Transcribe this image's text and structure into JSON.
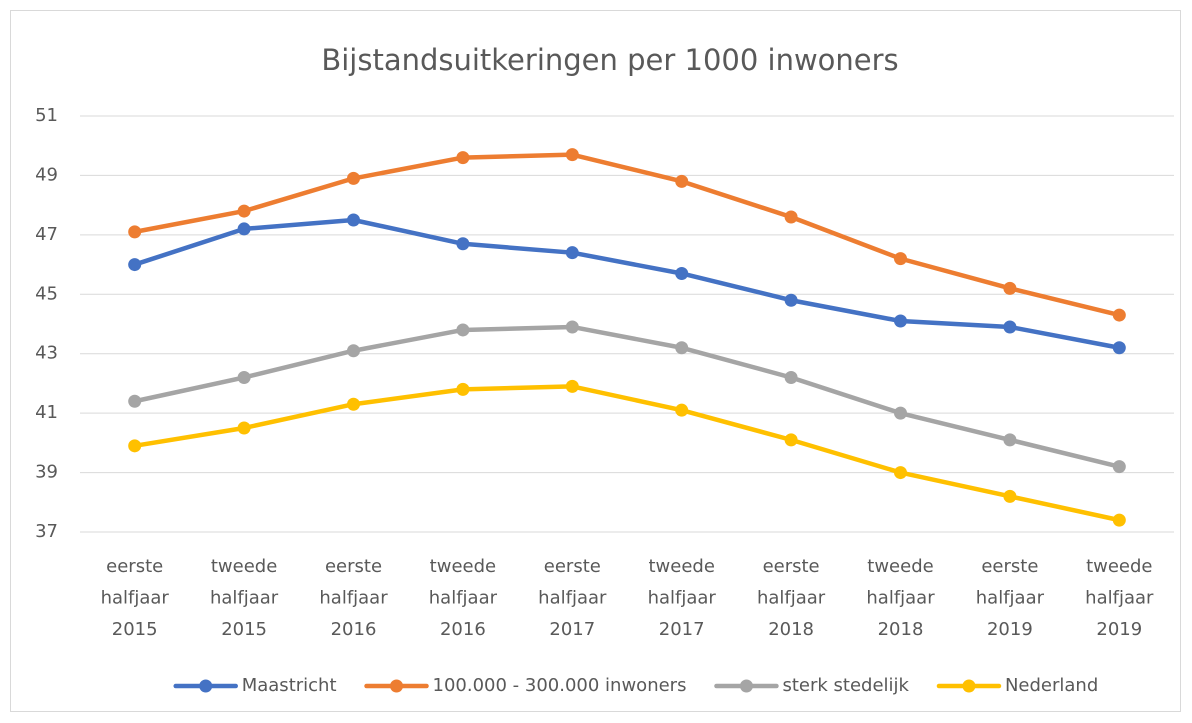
{
  "chart_data": {
    "type": "line",
    "title": "Bijstandsuitkeringen per 1000 inwoners",
    "categories": [
      [
        "eerste",
        "halfjaar",
        "2015"
      ],
      [
        "tweede",
        "halfjaar",
        "2015"
      ],
      [
        "eerste",
        "halfjaar",
        "2016"
      ],
      [
        "tweede",
        "halfjaar",
        "2016"
      ],
      [
        "eerste",
        "halfjaar",
        "2017"
      ],
      [
        "tweede",
        "halfjaar",
        "2017"
      ],
      [
        "eerste",
        "halfjaar",
        "2018"
      ],
      [
        "tweede",
        "halfjaar",
        "2018"
      ],
      [
        "eerste",
        "halfjaar",
        "2019"
      ],
      [
        "tweede",
        "halfjaar",
        "2019"
      ]
    ],
    "series": [
      {
        "name": "Maastricht",
        "color": "#4472c4",
        "values": [
          46.0,
          47.2,
          47.5,
          46.7,
          46.4,
          45.7,
          44.8,
          44.1,
          43.9,
          43.2
        ]
      },
      {
        "name": "100.000 - 300.000 inwoners",
        "color": "#ed7d31",
        "values": [
          47.1,
          47.8,
          48.9,
          49.6,
          49.7,
          48.8,
          47.6,
          46.2,
          45.2,
          44.3
        ]
      },
      {
        "name": "sterk stedelijk",
        "color": "#a5a5a5",
        "values": [
          41.4,
          42.2,
          43.1,
          43.8,
          43.9,
          43.2,
          42.2,
          41.0,
          40.1,
          39.2
        ]
      },
      {
        "name": "Nederland",
        "color": "#ffc000",
        "values": [
          39.9,
          40.5,
          41.3,
          41.8,
          41.9,
          41.1,
          40.1,
          39.0,
          38.2,
          37.4
        ]
      }
    ],
    "ylim": [
      37,
      51
    ],
    "yticks": [
      37,
      39,
      41,
      43,
      45,
      47,
      49,
      51
    ],
    "grid": true,
    "legend": "bottom"
  }
}
